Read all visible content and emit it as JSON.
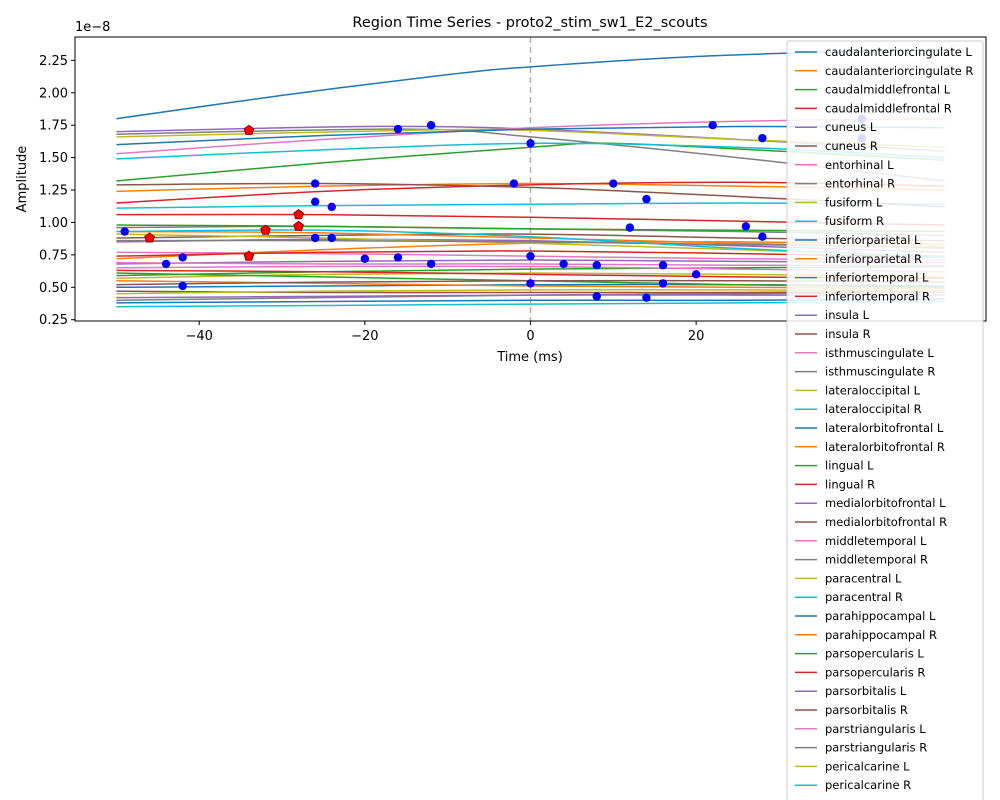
{
  "chart_data": {
    "type": "line",
    "title": "Region Time Series - proto2_stim_sw1_E2_scouts",
    "xlabel": "Time (ms)",
    "ylabel": "Amplitude",
    "y_scale_label": "1e−8",
    "xlim": [
      -55,
      55
    ],
    "ylim": [
      0.24,
      2.43
    ],
    "x_ticks": [
      -40,
      -20,
      0,
      20
    ],
    "x_tick_labels": [
      "−40",
      "−20",
      "0",
      "20"
    ],
    "y_ticks": [
      0.25,
      0.5,
      0.75,
      1.0,
      1.25,
      1.5,
      1.75,
      2.0,
      2.25
    ],
    "y_tick_labels": [
      "0.25",
      "0.50",
      "0.75",
      "1.00",
      "1.25",
      "1.50",
      "1.75",
      "2.00",
      "2.25"
    ],
    "grid": false,
    "legend_position": "upper right (overflowing below axes)",
    "vline_x": 0,
    "vline_style": "dashed gray",
    "series": [
      {
        "name": "caudalanteriorcingulate L",
        "color": "#1f77b4",
        "x": [
          -50,
          -30,
          -10,
          0,
          20,
          40,
          50
        ],
        "values": [
          1.8,
          1.98,
          2.14,
          2.2,
          2.28,
          2.32,
          2.33
        ]
      },
      {
        "name": "caudalanteriorcingulate R",
        "color": "#ff7f0e",
        "x": [
          -50,
          -25,
          0,
          25,
          50
        ],
        "values": [
          1.24,
          1.28,
          1.3,
          1.28,
          1.25
        ]
      },
      {
        "name": "caudalmiddlefrontal L",
        "color": "#2ca02c",
        "x": [
          -50,
          -25,
          0,
          10,
          30,
          50
        ],
        "values": [
          1.32,
          1.46,
          1.58,
          1.61,
          1.55,
          1.48
        ]
      },
      {
        "name": "caudalmiddlefrontal R",
        "color": "#d62728",
        "x": [
          -50,
          -25,
          0,
          25,
          50
        ],
        "values": [
          1.15,
          1.24,
          1.29,
          1.31,
          1.28
        ]
      },
      {
        "name": "cuneus L",
        "color": "#9467bd",
        "x": [
          -50,
          -20,
          0,
          25,
          50
        ],
        "values": [
          1.7,
          1.74,
          1.72,
          1.64,
          1.55
        ]
      },
      {
        "name": "cuneus R",
        "color": "#8c564b",
        "x": [
          -50,
          -25,
          0,
          25,
          50
        ],
        "values": [
          0.88,
          0.9,
          0.91,
          0.88,
          0.86
        ]
      },
      {
        "name": "entorhinal L",
        "color": "#e377c2",
        "x": [
          -50,
          -25,
          0,
          25,
          50
        ],
        "values": [
          1.53,
          1.64,
          1.73,
          1.78,
          1.8
        ]
      },
      {
        "name": "entorhinal R",
        "color": "#7f7f7f",
        "x": [
          -50,
          -15,
          0,
          25,
          50
        ],
        "values": [
          1.68,
          1.72,
          1.66,
          1.5,
          1.32
        ]
      },
      {
        "name": "fusiform L",
        "color": "#bcbd22",
        "x": [
          -50,
          -15,
          0,
          25,
          50
        ],
        "values": [
          1.66,
          1.71,
          1.71,
          1.64,
          1.58
        ]
      },
      {
        "name": "fusiform R",
        "color": "#17becf",
        "x": [
          -50,
          -25,
          0,
          25,
          50
        ],
        "values": [
          1.11,
          1.13,
          1.14,
          1.15,
          1.14
        ]
      },
      {
        "name": "inferiorparietal L",
        "color": "#1f77b4",
        "x": [
          -50,
          -25,
          0,
          25,
          50
        ],
        "values": [
          1.6,
          1.67,
          1.72,
          1.74,
          1.73
        ]
      },
      {
        "name": "inferiorparietal R",
        "color": "#ff7f0e",
        "x": [
          -50,
          -25,
          0,
          25,
          50
        ],
        "values": [
          0.93,
          0.92,
          0.88,
          0.84,
          0.8
        ]
      },
      {
        "name": "inferiortemporal L",
        "color": "#2ca02c",
        "x": [
          -50,
          -25,
          0,
          25,
          50
        ],
        "values": [
          0.59,
          0.62,
          0.64,
          0.65,
          0.66
        ]
      },
      {
        "name": "inferiortemporal R",
        "color": "#d62728",
        "x": [
          -50,
          -25,
          0,
          25,
          50
        ],
        "values": [
          1.06,
          1.06,
          1.04,
          1.01,
          0.98
        ]
      },
      {
        "name": "insula L",
        "color": "#9467bd",
        "x": [
          -50,
          -25,
          0,
          25,
          50
        ],
        "values": [
          0.68,
          0.7,
          0.71,
          0.7,
          0.69
        ]
      },
      {
        "name": "insula R",
        "color": "#8c564b",
        "x": [
          -50,
          -25,
          0,
          25,
          50
        ],
        "values": [
          1.29,
          1.3,
          1.27,
          1.2,
          1.12
        ]
      },
      {
        "name": "isthmuscingulate L",
        "color": "#e377c2",
        "x": [
          -50,
          -25,
          0,
          25,
          50
        ],
        "values": [
          0.77,
          0.76,
          0.74,
          0.72,
          0.71
        ]
      },
      {
        "name": "isthmuscingulate R",
        "color": "#7f7f7f",
        "x": [
          -50,
          -25,
          0,
          25,
          50
        ],
        "values": [
          0.4,
          0.42,
          0.44,
          0.45,
          0.46
        ]
      },
      {
        "name": "lateraloccipital L",
        "color": "#bcbd22",
        "x": [
          -50,
          -25,
          0,
          25,
          50
        ],
        "values": [
          0.57,
          0.6,
          0.61,
          0.6,
          0.58
        ]
      },
      {
        "name": "lateraloccipital R",
        "color": "#17becf",
        "x": [
          -50,
          -25,
          0,
          25,
          50
        ],
        "values": [
          1.49,
          1.56,
          1.61,
          1.58,
          1.5
        ]
      },
      {
        "name": "lateralorbitofrontal L",
        "color": "#1f77b4",
        "x": [
          -50,
          -25,
          0,
          25,
          50
        ],
        "values": [
          0.5,
          0.51,
          0.52,
          0.52,
          0.51
        ]
      },
      {
        "name": "lateralorbitofrontal R",
        "color": "#ff7f0e",
        "x": [
          -50,
          -25,
          0,
          25,
          50
        ],
        "values": [
          0.72,
          0.79,
          0.84,
          0.85,
          0.83
        ]
      },
      {
        "name": "lingual L",
        "color": "#2ca02c",
        "x": [
          -50,
          -25,
          0,
          25,
          50
        ],
        "values": [
          0.61,
          0.58,
          0.55,
          0.52,
          0.5
        ]
      },
      {
        "name": "lingual R",
        "color": "#d62728",
        "x": [
          -50,
          -25,
          0,
          25,
          50
        ],
        "values": [
          0.74,
          0.77,
          0.78,
          0.76,
          0.73
        ]
      },
      {
        "name": "medialorbitofrontal L",
        "color": "#9467bd",
        "x": [
          -50,
          -25,
          0,
          25,
          50
        ],
        "values": [
          0.85,
          0.87,
          0.86,
          0.82,
          0.77
        ]
      },
      {
        "name": "medialorbitofrontal R",
        "color": "#8c564b",
        "x": [
          -50,
          -25,
          0,
          25,
          50
        ],
        "values": [
          0.47,
          0.46,
          0.46,
          0.46,
          0.47
        ]
      },
      {
        "name": "middletemporal L",
        "color": "#e377c2",
        "x": [
          -50,
          -25,
          0,
          25,
          50
        ],
        "values": [
          0.65,
          0.66,
          0.66,
          0.64,
          0.62
        ]
      },
      {
        "name": "middletemporal R",
        "color": "#7f7f7f",
        "x": [
          -50,
          -25,
          0,
          25,
          50
        ],
        "values": [
          0.96,
          0.97,
          0.95,
          0.93,
          0.9
        ]
      },
      {
        "name": "paracentral L",
        "color": "#bcbd22",
        "x": [
          -50,
          -25,
          0,
          25,
          50
        ],
        "values": [
          0.91,
          0.88,
          0.84,
          0.79,
          0.74
        ]
      },
      {
        "name": "paracentral R",
        "color": "#17becf",
        "x": [
          -50,
          -25,
          0,
          25,
          50
        ],
        "values": [
          0.35,
          0.36,
          0.37,
          0.38,
          0.39
        ]
      },
      {
        "name": "parahippocampal L",
        "color": "#1f77b4",
        "x": [
          -50,
          -25,
          0,
          25,
          50
        ],
        "values": [
          0.38,
          0.39,
          0.4,
          0.4,
          0.41
        ]
      },
      {
        "name": "parahippocampal R",
        "color": "#ff7f0e",
        "x": [
          -50,
          -25,
          0,
          25,
          50
        ],
        "values": [
          0.55,
          0.53,
          0.51,
          0.5,
          0.49
        ]
      },
      {
        "name": "parsopercularis L",
        "color": "#2ca02c",
        "x": [
          -50,
          -25,
          0,
          25,
          50
        ],
        "values": [
          0.98,
          0.97,
          0.95,
          0.94,
          0.93
        ]
      },
      {
        "name": "parsopercularis R",
        "color": "#d62728",
        "x": [
          -50,
          -25,
          0,
          25,
          50
        ],
        "values": [
          0.63,
          0.62,
          0.6,
          0.58,
          0.57
        ]
      },
      {
        "name": "parsorbitalis L",
        "color": "#9467bd",
        "x": [
          -50,
          -25,
          0,
          25,
          50
        ],
        "values": [
          0.42,
          0.43,
          0.44,
          0.44,
          0.44
        ]
      },
      {
        "name": "parsorbitalis R",
        "color": "#8c564b",
        "x": [
          -50,
          -25,
          0,
          25,
          50
        ],
        "values": [
          0.52,
          0.54,
          0.55,
          0.55,
          0.54
        ]
      },
      {
        "name": "parstriangularis L",
        "color": "#e377c2",
        "x": [
          -50,
          -25,
          0,
          25,
          50
        ],
        "values": [
          0.69,
          0.68,
          0.68,
          0.67,
          0.67
        ]
      },
      {
        "name": "parstriangularis R",
        "color": "#7f7f7f",
        "x": [
          -50,
          -25,
          0,
          25,
          50
        ],
        "values": [
          0.86,
          0.86,
          0.85,
          0.83,
          0.81
        ]
      },
      {
        "name": "pericalcarine L",
        "color": "#bcbd22",
        "x": [
          -50,
          -25,
          0,
          25,
          50
        ],
        "values": [
          0.45,
          0.47,
          0.48,
          0.48,
          0.47
        ]
      },
      {
        "name": "pericalcarine R",
        "color": "#17becf",
        "x": [
          -50,
          -25,
          0,
          25,
          50
        ],
        "values": [
          0.93,
          0.94,
          0.89,
          0.8,
          0.73
        ]
      }
    ],
    "peak_markers": {
      "color": "#0000ff",
      "points": [
        [
          -26,
          1.3
        ],
        [
          -26,
          1.16
        ],
        [
          -24,
          1.12
        ],
        [
          -26,
          0.88
        ],
        [
          -24,
          0.88
        ],
        [
          -16,
          1.72
        ],
        [
          -12,
          1.75
        ],
        [
          0,
          1.61
        ],
        [
          -2,
          1.3
        ],
        [
          10,
          1.3
        ],
        [
          14,
          1.18
        ],
        [
          22,
          1.75
        ],
        [
          28,
          1.65
        ],
        [
          12,
          0.96
        ],
        [
          26,
          0.97
        ],
        [
          28,
          0.89
        ],
        [
          -49,
          0.93
        ],
        [
          -44,
          0.68
        ],
        [
          -42,
          0.73
        ],
        [
          -42,
          0.51
        ],
        [
          -20,
          0.72
        ],
        [
          -16,
          0.73
        ],
        [
          -12,
          0.68
        ],
        [
          0,
          0.74
        ],
        [
          0,
          0.53
        ],
        [
          4,
          0.68
        ],
        [
          8,
          0.67
        ],
        [
          8,
          0.43
        ],
        [
          14,
          0.42
        ],
        [
          16,
          0.67
        ],
        [
          16,
          0.53
        ],
        [
          20,
          0.6
        ],
        [
          40,
          1.8
        ],
        [
          40,
          1.65
        ]
      ]
    },
    "trough_markers": {
      "color": "#ff0000",
      "edge_color": "#8b0000",
      "points": [
        [
          -34,
          1.71
        ],
        [
          -46,
          0.88
        ],
        [
          -32,
          0.94
        ],
        [
          -28,
          1.06
        ],
        [
          -28,
          0.97
        ],
        [
          -34,
          0.74
        ]
      ]
    }
  }
}
